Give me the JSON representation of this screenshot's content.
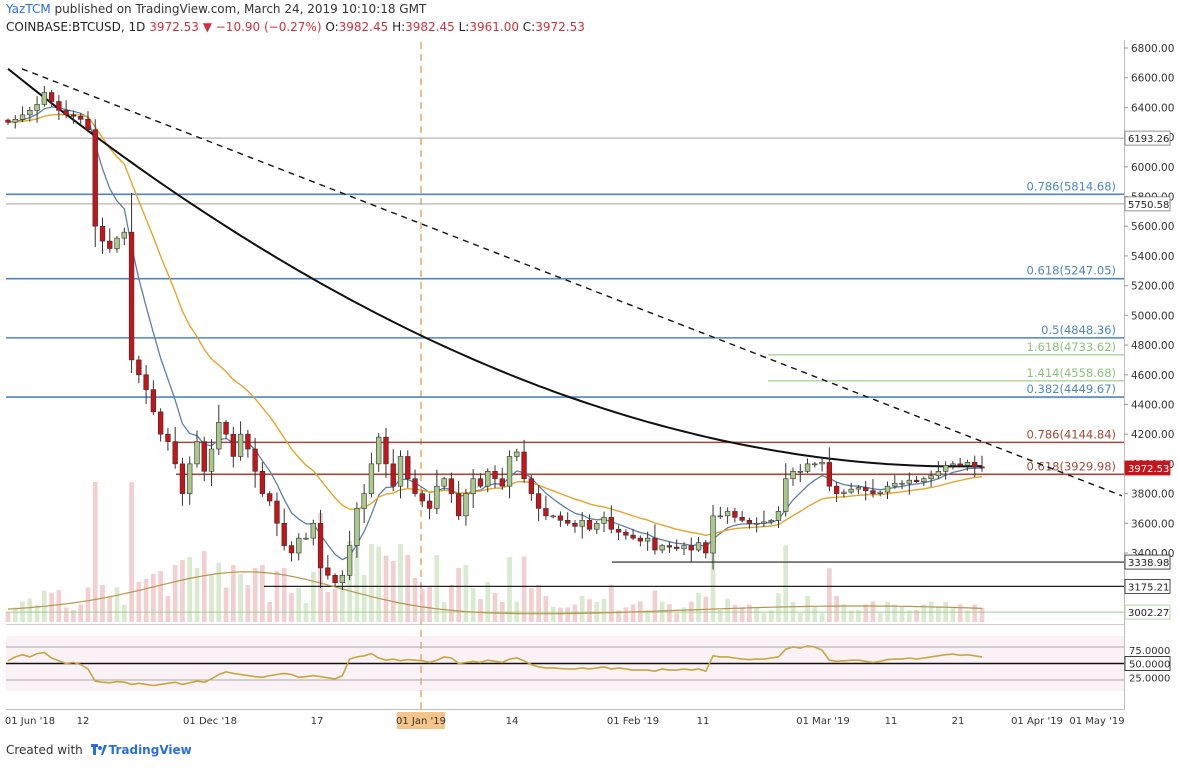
{
  "header": {
    "author": "YazTCM",
    "published_text": "published on TradingView.com, March 24, 2019 10:10:18 GMT"
  },
  "symbol": {
    "ticker": "COINBASE:BTCUSD, 1D",
    "last": "3972.53",
    "change": "−10.90 (−0.27%)",
    "o_label": "O:",
    "o": "3982.45",
    "h_label": "H:",
    "h": "3982.45",
    "l_label": "L:",
    "l": "3961.00",
    "c_label": "C:",
    "c": "3972.53"
  },
  "footer": {
    "created_with": "Created with",
    "brand": "TradingView"
  },
  "colors": {
    "up": "#a9c98a",
    "down": "#c6141a",
    "ma200": "#111111",
    "ema_fast": "#5b7fa8",
    "ema_slow": "#e3a52a",
    "fib_blue": "#4f86c0",
    "fib_green": "#8bc27a",
    "resistance": "#9c4a3a",
    "rsi": "#c9a53b"
  },
  "chart_data": [
    {
      "type": "candlestick",
      "y_axis_ticks": [
        "6800.00",
        "6600.00",
        "6400.00",
        "6200.00",
        "6000.00",
        "5800.00",
        "5600.00",
        "5400.00",
        "5200.00",
        "5000.00",
        "4800.00",
        "4600.00",
        "4400.00",
        "4200.00",
        "4000.00",
        "3800.00",
        "3600.00",
        "3400.00"
      ],
      "ylim": [
        2990,
        6840
      ],
      "x_axis_ticks": [
        "01 Jun '18",
        "12",
        "01 Dec '18",
        "17",
        "01 Jan '19",
        "14",
        "01 Feb '19",
        "11",
        "01 Mar '19",
        "11",
        "21",
        "01 Apr '19",
        "01 May '19"
      ],
      "x_axis_highlight": "01 Jan '19",
      "price_labels": [
        {
          "text": "6193.26",
          "value": 6193.26,
          "style": "gray"
        },
        {
          "text": "5750.58",
          "value": 5750.58,
          "style": "gray"
        },
        {
          "text": "3972.53",
          "value": 3972.53,
          "style": "current"
        },
        {
          "text": "3338.98",
          "value": 3338.98,
          "style": "line"
        },
        {
          "text": "3175.21",
          "value": 3175.21,
          "style": "line"
        },
        {
          "text": "3002.27",
          "value": 3002.27,
          "style": "green"
        }
      ],
      "levels": [
        {
          "ratio": "0.786",
          "text": "0.786(5814.68)",
          "value": 5814.68,
          "kind": "fib_blue"
        },
        {
          "ratio": "0.618",
          "text": "0.618(5247.05)",
          "value": 5247.05,
          "kind": "fib_blue"
        },
        {
          "ratio": "0.5",
          "text": "0.5(4848.36)",
          "value": 4848.36,
          "kind": "fib_blue"
        },
        {
          "ratio": "1.618",
          "text": "1.618(4733.62)",
          "value": 4733.62,
          "kind": "fib_green"
        },
        {
          "ratio": "1.414",
          "text": "1.414(4558.68)",
          "value": 4558.68,
          "kind": "fib_green"
        },
        {
          "ratio": "0.382",
          "text": "0.382(4449.67)",
          "value": 4449.67,
          "kind": "fib_blue"
        },
        {
          "ratio": "0.786",
          "text": "0.786(4144.84)",
          "value": 4144.84,
          "kind": "resistance"
        },
        {
          "ratio": "0.618",
          "text": "0.618(3929.98)",
          "value": 3929.98,
          "kind": "resistance"
        }
      ],
      "closes": [
        6300,
        6320,
        6350,
        6380,
        6420,
        6500,
        6440,
        6380,
        6350,
        6340,
        6320,
        6250,
        5600,
        5500,
        5450,
        5520,
        5560,
        4700,
        4600,
        4500,
        4350,
        4200,
        4150,
        4000,
        3800,
        4000,
        4150,
        3950,
        4100,
        4280,
        4200,
        4050,
        4200,
        4100,
        3950,
        3800,
        3750,
        3600,
        3450,
        3400,
        3500,
        3500,
        3600,
        3300,
        3250,
        3200,
        3250,
        3450,
        3700,
        3800,
        4000,
        4180,
        4000,
        3850,
        4050,
        3900,
        3800,
        3750,
        3700,
        3850,
        3900,
        3800,
        3650,
        3800,
        3900,
        3850,
        3950,
        3900,
        3850,
        4050,
        4080,
        3900,
        3800,
        3700,
        3650,
        3650,
        3620,
        3600,
        3580,
        3620,
        3560,
        3600,
        3640,
        3560,
        3540,
        3520,
        3500,
        3480,
        3500,
        3420,
        3450,
        3440,
        3430,
        3450,
        3420,
        3470,
        3400,
        3650,
        3650,
        3680,
        3640,
        3620,
        3600,
        3600,
        3610,
        3620,
        3680,
        3900,
        3950,
        3950,
        4000,
        4000,
        4010,
        3850,
        3800,
        3810,
        3830,
        3840,
        3820,
        3800,
        3810,
        3850,
        3870,
        3870,
        3890,
        3880,
        3900,
        3920,
        3950,
        3990,
        4000,
        3990,
        4010,
        3980,
        3972
      ]
    },
    {
      "type": "line",
      "name": "RSI",
      "y_axis_ticks": [
        "75.0000",
        "50.0000",
        "25.0000"
      ],
      "ylim": [
        0,
        100
      ],
      "values": [
        55,
        62,
        66,
        62,
        68,
        70,
        60,
        55,
        50,
        52,
        48,
        40,
        18,
        16,
        15,
        17,
        16,
        12,
        14,
        12,
        10,
        12,
        14,
        16,
        12,
        15,
        18,
        16,
        22,
        30,
        35,
        32,
        30,
        28,
        26,
        25,
        28,
        30,
        32,
        30,
        25,
        26,
        28,
        26,
        24,
        22,
        28,
        58,
        62,
        64,
        68,
        60,
        56,
        58,
        55,
        57,
        56,
        55,
        52,
        56,
        62,
        60,
        50,
        52,
        54,
        52,
        56,
        54,
        52,
        58,
        60,
        55,
        48,
        44,
        42,
        42,
        41,
        40,
        40,
        42,
        40,
        42,
        44,
        40,
        42,
        40,
        38,
        38,
        38,
        36,
        40,
        38,
        38,
        40,
        38,
        40,
        36,
        64,
        62,
        62,
        60,
        58,
        57,
        58,
        58,
        60,
        62,
        76,
        80,
        78,
        82,
        80,
        74,
        56,
        54,
        55,
        56,
        56,
        54,
        52,
        54,
        57,
        58,
        58,
        60,
        58,
        60,
        62,
        64,
        66,
        67,
        65,
        66,
        64,
        62
      ],
      "reference_lines": [
        80,
        50,
        20
      ]
    }
  ]
}
